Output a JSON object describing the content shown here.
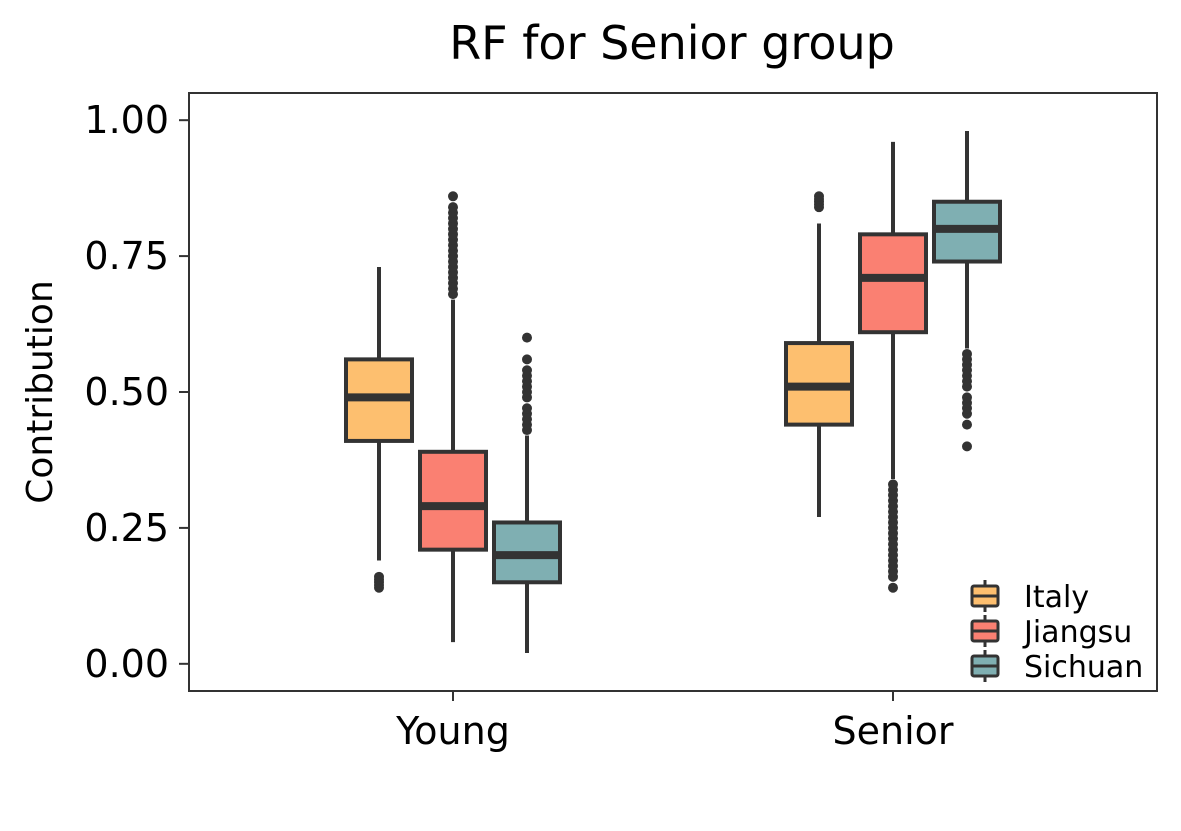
{
  "chart_data": {
    "type": "boxplot",
    "title": "RF for Senior group",
    "xlabel": "",
    "ylabel": "Contribution",
    "ylim": [
      -0.05,
      1.05
    ],
    "yticks": [
      "0.00",
      "0.25",
      "0.50",
      "0.75",
      "1.00"
    ],
    "ytick_values": [
      0,
      0.25,
      0.5,
      0.75,
      1.0
    ],
    "categories": [
      "Young",
      "Senior"
    ],
    "grid": false,
    "legend_position": "bottom-right",
    "series": [
      {
        "name": "Italy",
        "color": "#FDBF6F",
        "boxes": [
          {
            "category": "Young",
            "min": 0.19,
            "q1": 0.41,
            "median": 0.49,
            "q3": 0.56,
            "max": 0.73,
            "outliers": [
              0.14,
              0.145,
              0.15,
              0.155,
              0.16
            ]
          },
          {
            "category": "Senior",
            "min": 0.27,
            "q1": 0.44,
            "median": 0.51,
            "q3": 0.59,
            "max": 0.81,
            "outliers": [
              0.84,
              0.845,
              0.85,
              0.855,
              0.86
            ]
          }
        ]
      },
      {
        "name": "Jiangsu",
        "color": "#FA8072",
        "boxes": [
          {
            "category": "Young",
            "min": 0.04,
            "q1": 0.21,
            "median": 0.29,
            "q3": 0.39,
            "max": 0.67,
            "outliers": [
              0.68,
              0.69,
              0.7,
              0.71,
              0.72,
              0.73,
              0.74,
              0.75,
              0.76,
              0.77,
              0.78,
              0.79,
              0.8,
              0.81,
              0.82,
              0.83,
              0.84,
              0.86
            ]
          },
          {
            "category": "Senior",
            "min": 0.34,
            "q1": 0.61,
            "median": 0.71,
            "q3": 0.79,
            "max": 0.96,
            "outliers": [
              0.14,
              0.16,
              0.17,
              0.18,
              0.19,
              0.2,
              0.21,
              0.22,
              0.23,
              0.24,
              0.25,
              0.26,
              0.27,
              0.28,
              0.29,
              0.3,
              0.31,
              0.32,
              0.33
            ]
          }
        ]
      },
      {
        "name": "Sichuan",
        "color": "#7FAFB2",
        "boxes": [
          {
            "category": "Young",
            "min": 0.02,
            "q1": 0.15,
            "median": 0.2,
            "q3": 0.26,
            "max": 0.42,
            "outliers": [
              0.43,
              0.44,
              0.45,
              0.46,
              0.47,
              0.49,
              0.5,
              0.51,
              0.52,
              0.53,
              0.54,
              0.56,
              0.6
            ]
          },
          {
            "category": "Senior",
            "min": 0.58,
            "q1": 0.74,
            "median": 0.8,
            "q3": 0.85,
            "max": 0.98,
            "outliers": [
              0.4,
              0.44,
              0.46,
              0.47,
              0.48,
              0.49,
              0.51,
              0.52,
              0.53,
              0.54,
              0.55,
              0.56,
              0.57
            ]
          }
        ]
      }
    ]
  }
}
